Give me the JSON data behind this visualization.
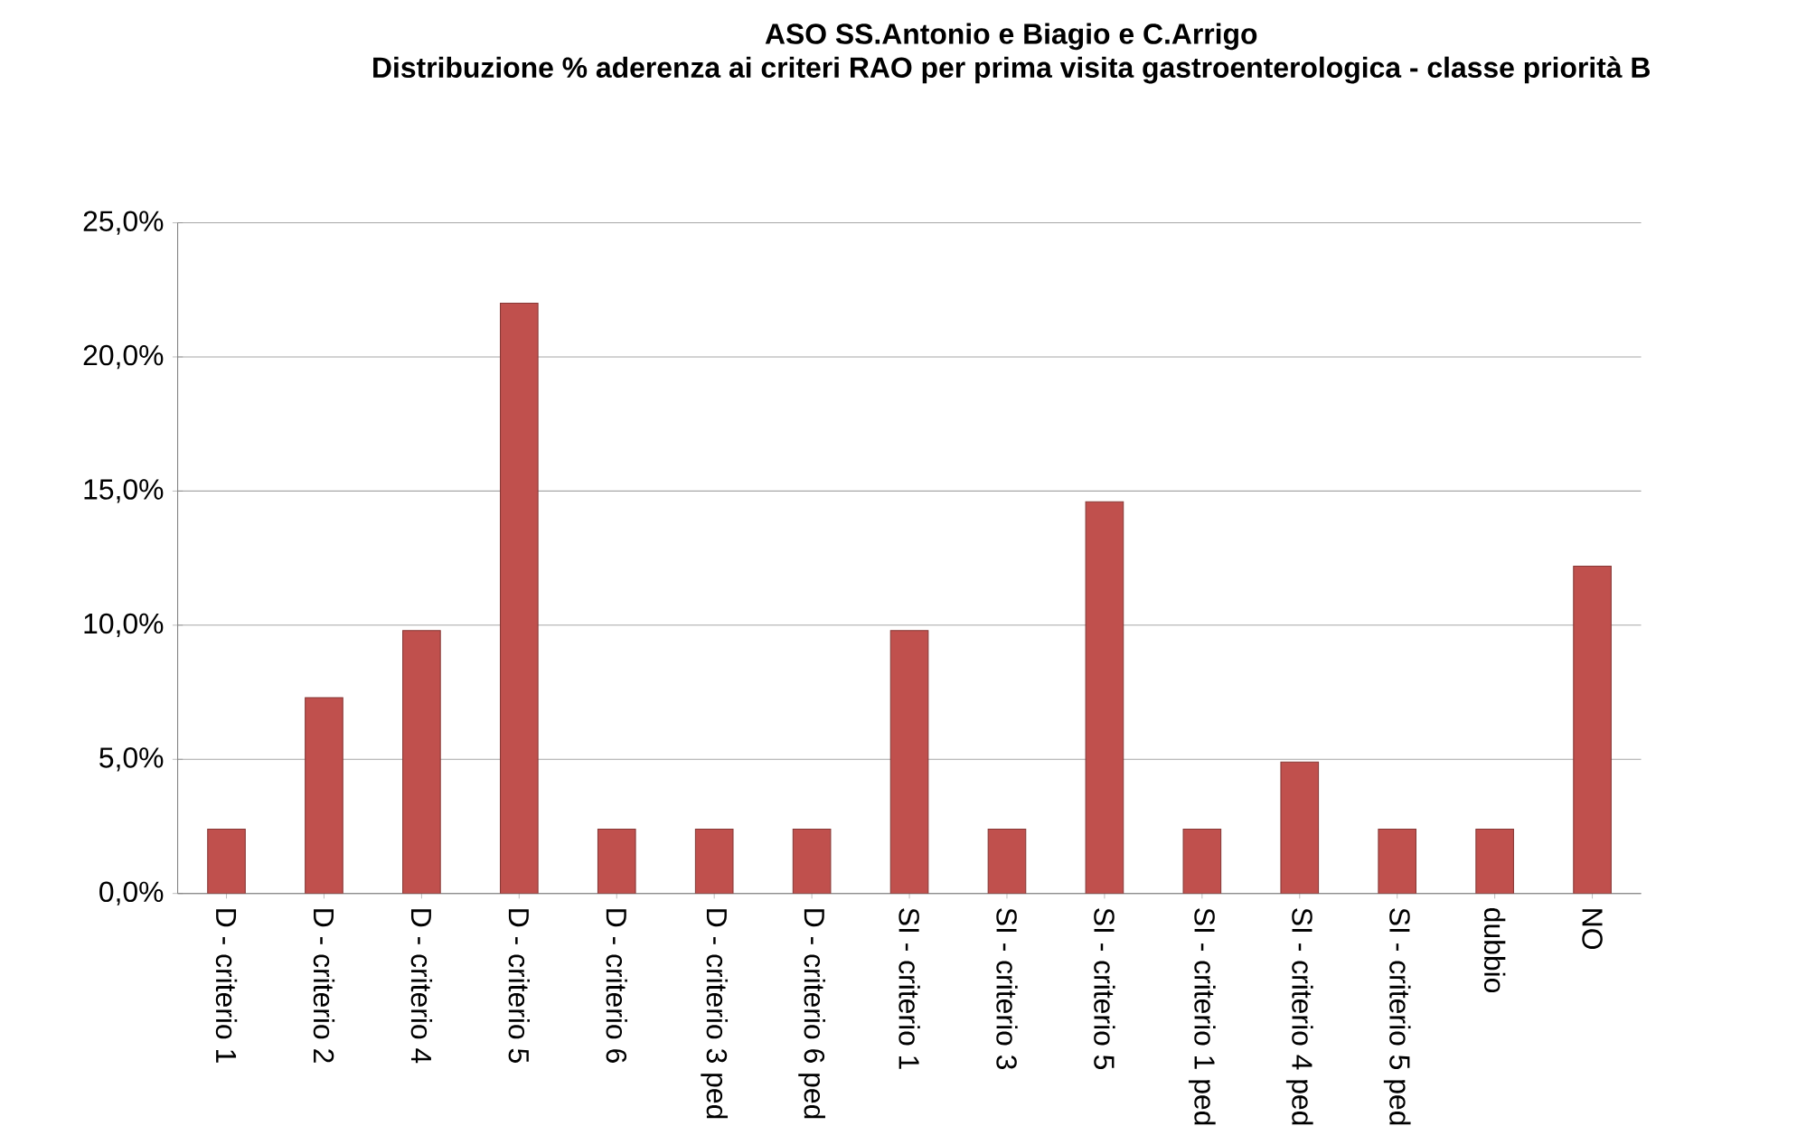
{
  "chart_data": {
    "type": "bar",
    "title": "ASO SS.Antonio e Biagio e C.Arrigo",
    "subtitle": "Distribuzione %   aderenza ai criteri RAO per prima visita gastroenterologica - classe priorità  B",
    "categories": [
      "D - criterio 1",
      "D - criterio 2",
      "D - criterio 4",
      "D - criterio 5",
      "D - criterio 6",
      "D - criterio 3 ped",
      "D - criterio 6 ped",
      "SI - criterio 1",
      "SI - criterio 3",
      "SI - criterio 5",
      "SI - criterio 1 ped",
      "SI - criterio 4 ped",
      "SI - criterio 5 ped",
      "dubbio",
      "NO"
    ],
    "values": [
      2.4,
      7.3,
      9.8,
      22.0,
      2.4,
      2.4,
      2.4,
      9.8,
      2.4,
      14.6,
      2.4,
      4.9,
      2.4,
      2.4,
      12.2
    ],
    "color": "#c0504d",
    "ylim": [
      0,
      25
    ],
    "yticks": [
      {
        "value": 0,
        "label": "0,0%"
      },
      {
        "value": 5,
        "label": "5,0%"
      },
      {
        "value": 10,
        "label": "10,0%"
      },
      {
        "value": 15,
        "label": "15,0%"
      },
      {
        "value": 20,
        "label": "20,0%"
      },
      {
        "value": 25,
        "label": "25,0%"
      }
    ],
    "grid": "y"
  }
}
